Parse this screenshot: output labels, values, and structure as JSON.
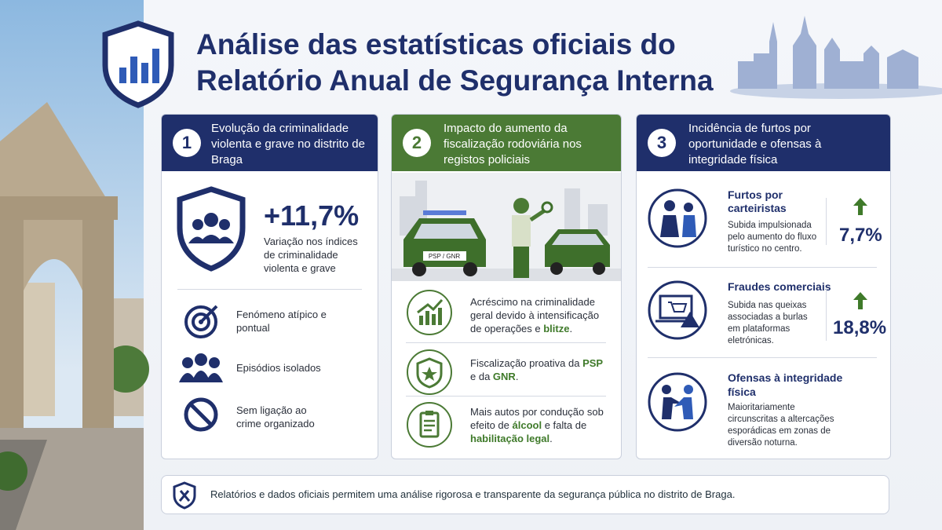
{
  "header": {
    "title_lines": [
      "Análise das estatísticas oficiais do",
      "Relatório Anual de Segurança Interna"
    ]
  },
  "cards": [
    {
      "number": "1",
      "title": "Evolução da criminalidade violenta e grave no distrito de Braga",
      "stat": "+11,7%",
      "stat_caption": "Variação nos índices de criminalidade violenta e grave",
      "items": [
        "Fenómeno atípico e pontual",
        "Episódios isolados",
        "Sem ligação ao crime organizado"
      ]
    },
    {
      "number": "2",
      "title": "Impacto do aumento da fiscalização rodoviária nos registos policiais",
      "car_plate": "PSP / GNR",
      "items": [
        [
          "Acréscimo na criminalidade geral devido à intensificação de operações e ",
          "blitze",
          "."
        ],
        [
          "Fiscalização proativa da ",
          "PSP",
          " e da ",
          "GNR",
          "."
        ],
        [
          "Mais autos por condução sob efeito de ",
          "álcool",
          " e falta de ",
          "habilitação legal",
          "."
        ]
      ]
    },
    {
      "number": "3",
      "title": "Incidência de furtos por oportunidade e ofensas à integridade física",
      "items": [
        {
          "heading": "Furtos por carteiristas",
          "text": "Subida impulsionada pelo aumento do fluxo turístico no centro.",
          "stat": "7,7%"
        },
        {
          "heading": "Fraudes comerciais",
          "text": "Subida nas queixas associadas a burlas em plataformas eletrónicas.",
          "stat": "18,8%"
        },
        {
          "heading": "Ofensas à integridade física",
          "text": "Maioritariamente circunscritas a altercações esporádicas em zonas de diversão noturna."
        }
      ]
    }
  ],
  "footer": {
    "text": "Relatórios e dados oficiais permitem uma análise rigorosa e transparente da segurança pública no distrito de Braga."
  }
}
